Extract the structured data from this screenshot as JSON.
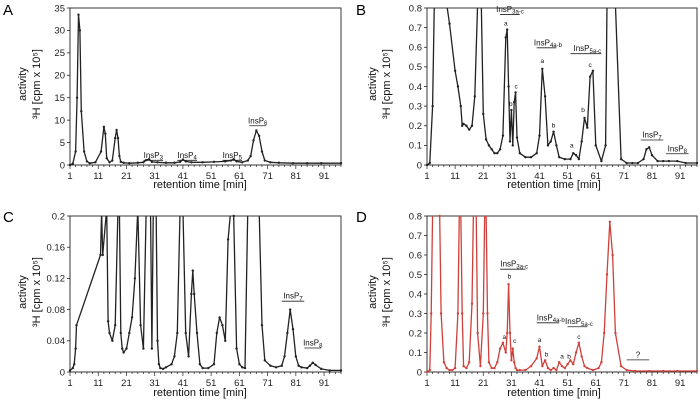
{
  "figure": {
    "panels": [
      "A",
      "B",
      "C",
      "D"
    ],
    "y_axis_title_line1": "activity",
    "y_axis_title_line2": "³H [cpm x 10⁵]"
  },
  "chart_data": [
    {
      "id": "A",
      "type": "line",
      "color": "#222222",
      "xlabel": "retention time [min]",
      "ylabel": "activity ³H [cpm x 10⁵]",
      "xlim": [
        1,
        97
      ],
      "ylim": [
        0,
        35
      ],
      "xticks": [
        1,
        11,
        21,
        31,
        41,
        51,
        61,
        71,
        81,
        91
      ],
      "xtick_labels": [
        "1",
        "11",
        "21",
        "31",
        "41",
        "51",
        "61",
        "71",
        "81",
        "91"
      ],
      "yticks": [
        0,
        5,
        10,
        15,
        20,
        25,
        30,
        35
      ],
      "ytick_labels": [
        "0",
        "5",
        "10",
        "15",
        "20",
        "25",
        "30",
        "35"
      ],
      "x": [
        1,
        2,
        3,
        3.5,
        4,
        4.5,
        5,
        6,
        7,
        8,
        10,
        12,
        13,
        13.5,
        14,
        15,
        16,
        17,
        17.5,
        18,
        18.5,
        19,
        20,
        22,
        25,
        27,
        28,
        29,
        30,
        32,
        35,
        38,
        40,
        41,
        42,
        44,
        48,
        52,
        56,
        58,
        59,
        60,
        62,
        64,
        65,
        66,
        67,
        68,
        69,
        70,
        72,
        75,
        80,
        85,
        90,
        97
      ],
      "values": [
        0,
        0.3,
        3,
        15,
        33.5,
        30,
        12,
        3,
        0.8,
        0.4,
        0.6,
        3,
        8.5,
        7,
        1.5,
        0.6,
        1,
        6,
        7.8,
        6,
        2,
        0.7,
        0.5,
        0.4,
        0.5,
        0.6,
        1.1,
        1.3,
        0.7,
        0.6,
        0.5,
        0.5,
        0.7,
        1.2,
        0.8,
        0.6,
        0.6,
        0.7,
        0.8,
        1.0,
        1.3,
        0.8,
        0.6,
        1,
        2,
        5.5,
        7.7,
        6.5,
        3,
        1,
        0.6,
        0.5,
        0.4,
        0.4,
        0.4,
        0.4
      ],
      "annotations": [
        {
          "label": "InsP",
          "sub": "3",
          "x": 30.5,
          "y": 1.6,
          "bar_x": [
            27,
            34
          ]
        },
        {
          "label": "InsP",
          "sub": "4",
          "x": 42.5,
          "y": 1.6,
          "bar_x": [
            39,
            46
          ]
        },
        {
          "label": "InsP",
          "sub": "5",
          "x": 58.5,
          "y": 1.6,
          "bar_x": [
            55,
            62
          ]
        },
        {
          "label": "InsP",
          "sub": "6",
          "x": 67.5,
          "y": 9.3,
          "bar_x": [
            64.5,
            70.5
          ]
        }
      ],
      "peak_letters": []
    },
    {
      "id": "B",
      "type": "line",
      "color": "#222222",
      "xlabel": "retention time [min]",
      "ylabel": "activity ³H [cpm x 10⁵]",
      "xlim": [
        1,
        97
      ],
      "ylim": [
        0,
        0.8
      ],
      "xticks": [
        1,
        11,
        21,
        31,
        41,
        51,
        61,
        71,
        81,
        91
      ],
      "xtick_labels": [
        "1",
        "11",
        "21",
        "31",
        "41",
        "51",
        "61",
        "71",
        "81",
        "91"
      ],
      "yticks": [
        0,
        0.1,
        0.2,
        0.3,
        0.4,
        0.5,
        0.6,
        0.7,
        0.8
      ],
      "ytick_labels": [
        "0",
        "0.1",
        "0.2",
        "0.3",
        "0.4",
        "0.5",
        "0.6",
        "0.7",
        "0.8"
      ],
      "x": [
        1,
        2,
        3,
        3.6,
        4.1,
        8,
        9,
        11,
        12,
        13,
        13.5,
        14,
        15,
        16,
        17,
        18,
        19,
        19.8,
        20.3,
        21,
        22,
        23,
        24,
        25,
        26,
        27,
        28,
        29,
        29.5,
        30,
        30.5,
        31,
        31.5,
        32,
        32.5,
        33,
        34,
        36,
        38,
        40,
        41,
        42,
        43,
        44,
        45,
        46,
        47,
        48,
        50,
        52,
        53,
        54,
        55,
        56,
        57,
        58,
        59,
        60,
        61,
        63,
        64.5,
        65,
        67,
        67.5,
        68,
        70,
        72,
        74,
        76,
        78,
        79,
        80,
        81,
        83,
        85,
        87,
        90,
        93,
        97
      ],
      "values": [
        0,
        0.01,
        0.3,
        0.82,
        0.82,
        0.82,
        0.72,
        0.48,
        0.4,
        0.3,
        0.2,
        0.21,
        0.2,
        0.18,
        0.2,
        0.35,
        0.82,
        0.82,
        0.82,
        0.26,
        0.13,
        0.1,
        0.08,
        0.06,
        0.06,
        0.08,
        0.15,
        0.65,
        0.69,
        0.4,
        0.12,
        0.28,
        0.1,
        0.32,
        0.37,
        0.14,
        0.06,
        0.04,
        0.04,
        0.06,
        0.15,
        0.49,
        0.35,
        0.1,
        0.12,
        0.17,
        0.1,
        0.04,
        0.03,
        0.03,
        0.06,
        0.05,
        0.03,
        0.12,
        0.24,
        0.19,
        0.45,
        0.48,
        0.1,
        0.02,
        0.1,
        0.82,
        0.82,
        0.82,
        0.82,
        0.03,
        0.01,
        0.01,
        0.01,
        0.03,
        0.08,
        0.09,
        0.05,
        0.02,
        0.02,
        0.02,
        0.02,
        0.01,
        0.01
      ],
      "annotations": [
        {
          "label": "InsP",
          "sub": "3a-c",
          "x": 30.5,
          "y": 0.78,
          "bar_x": [
            27,
            34
          ]
        },
        {
          "label": "InsP",
          "sub": "4a-b",
          "x": 44,
          "y": 0.61,
          "bar_x": [
            40,
            47
          ]
        },
        {
          "label": "InsP",
          "sub": "5a-c",
          "x": 58,
          "y": 0.58,
          "bar_x": [
            52,
            63
          ]
        },
        {
          "label": "InsP",
          "sub": "7",
          "x": 81,
          "y": 0.14,
          "bar_x": [
            77,
            85
          ]
        },
        {
          "label": "InsP",
          "sub": "8",
          "x": 90,
          "y": 0.07,
          "bar_x": [
            86,
            94
          ]
        }
      ],
      "peak_letters": [
        {
          "t": "a",
          "x": 29,
          "y": 0.71
        },
        {
          "t": "b",
          "x": 30.8,
          "y": 0.3
        },
        {
          "t": "c",
          "x": 32.7,
          "y": 0.39
        },
        {
          "t": "a",
          "x": 42,
          "y": 0.52
        },
        {
          "t": "b",
          "x": 46,
          "y": 0.19
        },
        {
          "t": "a",
          "x": 52.5,
          "y": 0.09
        },
        {
          "t": "b",
          "x": 56.5,
          "y": 0.27
        },
        {
          "t": "c",
          "x": 59,
          "y": 0.5
        }
      ]
    },
    {
      "id": "C",
      "type": "line",
      "color": "#222222",
      "xlabel": "retention time [min]",
      "ylabel": "activity ³H [cpm x 10⁵]",
      "xlim": [
        1,
        97
      ],
      "ylim": [
        0,
        0.2
      ],
      "xticks": [
        1,
        11,
        21,
        31,
        41,
        51,
        61,
        71,
        81,
        91
      ],
      "xtick_labels": [
        "1",
        "11",
        "21",
        "31",
        "41",
        "51",
        "61",
        "71",
        "81",
        "91"
      ],
      "yticks": [
        0,
        0.04,
        0.08,
        0.12,
        0.16,
        0.2
      ],
      "ytick_labels": [
        "0",
        "0.04",
        "0.08",
        "0.12",
        "0.16",
        "0.2"
      ],
      "x": [
        1,
        2,
        2.5,
        3,
        3.3,
        11.8,
        12.2,
        12.6,
        14,
        14.5,
        15,
        16,
        17,
        18,
        18.5,
        19,
        19.5,
        20,
        21,
        22,
        23,
        24,
        25,
        26,
        27,
        28,
        28.5,
        29,
        29.5,
        30,
        30.5,
        31,
        31.5,
        32,
        32.5,
        33,
        34,
        35,
        37,
        38,
        39,
        40,
        41,
        42,
        43,
        44,
        44.5,
        45,
        46,
        47,
        48,
        50,
        52,
        53,
        54,
        55,
        56,
        57,
        58,
        59,
        60,
        61,
        62,
        63,
        64,
        66,
        68,
        69,
        70,
        72,
        74,
        76,
        77,
        78,
        79,
        80,
        81,
        82,
        83,
        85,
        86,
        87,
        88,
        90,
        93,
        97
      ],
      "values": [
        0.002,
        0.005,
        0.01,
        0.03,
        0.06,
        0.15,
        0.205,
        0.15,
        0.21,
        0.065,
        0.05,
        0.04,
        0.06,
        0.21,
        0.21,
        0.05,
        0.03,
        0.025,
        0.03,
        0.05,
        0.07,
        0.12,
        0.21,
        0.06,
        0.03,
        0.21,
        0.21,
        0.21,
        0.21,
        0.03,
        0.21,
        0.21,
        0.21,
        0.04,
        0.01,
        0.005,
        0.004,
        0.006,
        0.01,
        0.02,
        0.05,
        0.21,
        0.21,
        0.05,
        0.02,
        0.1,
        0.13,
        0.1,
        0.05,
        0.01,
        0.005,
        0.005,
        0.01,
        0.05,
        0.07,
        0.06,
        0.04,
        0.17,
        0.21,
        0.2,
        0.03,
        0.01,
        0.006,
        0.005,
        0.21,
        0.21,
        0.21,
        0.06,
        0.015,
        0.008,
        0.006,
        0.008,
        0.02,
        0.05,
        0.08,
        0.055,
        0.02,
        0.008,
        0.006,
        0.005,
        0.008,
        0.012,
        0.009,
        0.004,
        0.002,
        0.002
      ],
      "annotations": [
        {
          "label": "InsP",
          "sub": "7",
          "x": 80,
          "y": 0.094,
          "bar_x": [
            76,
            84
          ]
        },
        {
          "label": "InsP",
          "sub": "8",
          "x": 87,
          "y": 0.034,
          "bar_x": [
            84,
            90
          ]
        }
      ],
      "peak_letters": []
    },
    {
      "id": "D",
      "type": "line",
      "color": "#d0403a",
      "xlabel": "retention time [min]",
      "ylabel": "activity ³H [cpm x 10⁵]",
      "xlim": [
        1,
        97
      ],
      "ylim": [
        0,
        0.8
      ],
      "xticks": [
        1,
        11,
        21,
        31,
        41,
        51,
        61,
        71,
        81,
        91
      ],
      "xtick_labels": [
        "1",
        "11",
        "21",
        "31",
        "41",
        "51",
        "61",
        "71",
        "81",
        "91"
      ],
      "yticks": [
        0,
        0.1,
        0.2,
        0.3,
        0.4,
        0.5,
        0.6,
        0.7,
        0.8
      ],
      "ytick_labels": [
        "0",
        "0.1",
        "0.2",
        "0.3",
        "0.4",
        "0.5",
        "0.6",
        "0.7",
        "0.8"
      ],
      "x": [
        1,
        2,
        2.5,
        3,
        4,
        5,
        5.5,
        6,
        7,
        8,
        9,
        10,
        11,
        12,
        12.5,
        13,
        13.5,
        14,
        15,
        16,
        17,
        17.5,
        18,
        18.5,
        19,
        20,
        21,
        21.5,
        22,
        22.5,
        23,
        24,
        25,
        26,
        27,
        28,
        29,
        29.5,
        30,
        30.5,
        31,
        31.5,
        32,
        32.5,
        33,
        34,
        36,
        38,
        40,
        41,
        42,
        43,
        44,
        45,
        46,
        47,
        48,
        49,
        50,
        51,
        52,
        53,
        54,
        55,
        56,
        57,
        58,
        60,
        62,
        63,
        64,
        65,
        66,
        67,
        68,
        70,
        72,
        75,
        80,
        85,
        90,
        97
      ],
      "values": [
        0,
        0.01,
        0.3,
        0.82,
        0.82,
        0.82,
        0.8,
        0.3,
        0.05,
        0.02,
        0.01,
        0.01,
        0.02,
        0.3,
        0.82,
        0.82,
        0.3,
        0.03,
        0.02,
        0.05,
        0.35,
        0.82,
        0.82,
        0.82,
        0.2,
        0.03,
        0.3,
        0.82,
        0.82,
        0.3,
        0.05,
        0.02,
        0.02,
        0.05,
        0.12,
        0.15,
        0.1,
        0.2,
        0.45,
        0.2,
        0.06,
        0.12,
        0.05,
        0.02,
        0.01,
        0.01,
        0.01,
        0.03,
        0.07,
        0.13,
        0.03,
        0.06,
        0.02,
        0.01,
        0.02,
        0.01,
        0.05,
        0.03,
        0.02,
        0.04,
        0.06,
        0.04,
        0.1,
        0.15,
        0.08,
        0.03,
        0.02,
        0.01,
        0.02,
        0.05,
        0.2,
        0.5,
        0.77,
        0.6,
        0.2,
        0.03,
        0.01,
        0.005,
        0.005,
        0.005,
        0.005,
        0.005
      ],
      "annotations": [
        {
          "label": "InsP",
          "sub": "3a-c",
          "x": 32,
          "y": 0.54,
          "bar_x": [
            27,
            36
          ]
        },
        {
          "label": "InsP",
          "sub": "4a-b",
          "x": 45,
          "y": 0.265,
          "bar_x": [
            40,
            48
          ]
        },
        {
          "label": "InsP",
          "sub": "5a-c",
          "x": 55,
          "y": 0.245,
          "bar_x": [
            51,
            58
          ]
        },
        {
          "label": "?",
          "sub": "",
          "x": 76,
          "y": 0.075,
          "bar_x": [
            72,
            80
          ]
        }
      ],
      "peak_letters": [
        {
          "t": "a",
          "x": 28.5,
          "y": 0.17
        },
        {
          "t": "b",
          "x": 30.3,
          "y": 0.48
        },
        {
          "t": "c",
          "x": 32.2,
          "y": 0.15
        },
        {
          "t": "a",
          "x": 41,
          "y": 0.155
        },
        {
          "t": "b",
          "x": 43.5,
          "y": 0.08
        },
        {
          "t": "a",
          "x": 49,
          "y": 0.07
        },
        {
          "t": "b",
          "x": 51.5,
          "y": 0.07
        },
        {
          "t": "c",
          "x": 55,
          "y": 0.17
        }
      ]
    }
  ]
}
